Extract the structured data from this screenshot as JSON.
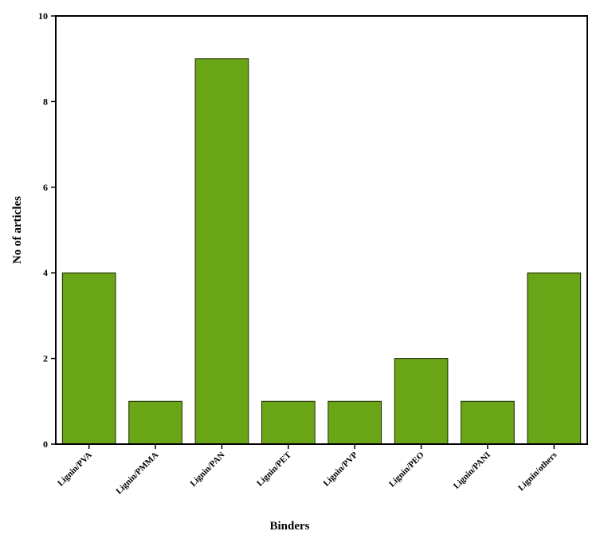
{
  "chart_data": {
    "type": "bar",
    "categories": [
      "Lignin/PVA",
      "Lignin/PMMA",
      "Lignin/PAN",
      "Lignin/PET",
      "Lignin/PVP",
      "Lignin/PEO",
      "Lignin/PANI",
      "Lignin/others"
    ],
    "values": [
      4,
      1,
      9,
      1,
      1,
      2,
      1,
      4
    ],
    "title": "",
    "xlabel": "Binders",
    "ylabel": "No of articles",
    "ylim": [
      0,
      10
    ],
    "yticks": [
      0,
      2,
      4,
      6,
      8,
      10
    ],
    "grid": false,
    "bar_color": "#6aa517",
    "bar_edge_color": "#1f2a05"
  }
}
